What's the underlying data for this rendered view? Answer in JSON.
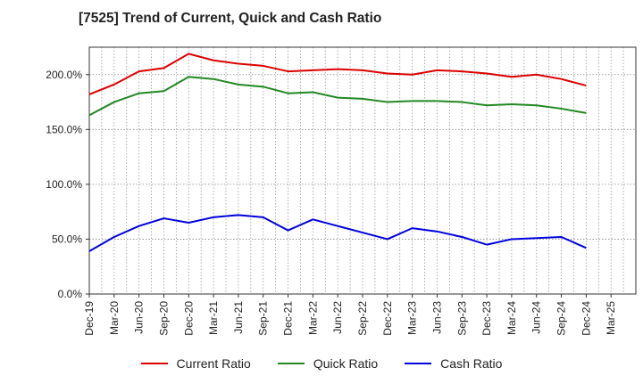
{
  "chart_data": {
    "type": "line",
    "title": "[7525]  Trend of Current, Quick and Cash Ratio",
    "categories": [
      "Dec-19",
      "Mar-20",
      "Jun-20",
      "Sep-20",
      "Dec-20",
      "Mar-21",
      "Jun-21",
      "Sep-21",
      "Dec-21",
      "Mar-22",
      "Jun-22",
      "Sep-22",
      "Dec-22",
      "Mar-23",
      "Jun-23",
      "Sep-23",
      "Dec-23",
      "Mar-24",
      "Jun-24",
      "Sep-24",
      "Dec-24",
      "Mar-25"
    ],
    "series": [
      {
        "name": "Current Ratio",
        "color": "#dd0000",
        "values": [
          182,
          191,
          203,
          206,
          219,
          213,
          210,
          208,
          203,
          204,
          205,
          204,
          201,
          200,
          204,
          203,
          201,
          198,
          200,
          196,
          190,
          null
        ]
      },
      {
        "name": "Quick Ratio",
        "color": "#228822",
        "values": [
          163,
          175,
          183,
          185,
          198,
          196,
          191,
          189,
          183,
          184,
          179,
          178,
          175,
          176,
          176,
          175,
          172,
          173,
          172,
          169,
          165,
          null
        ]
      },
      {
        "name": "Cash Ratio",
        "color": "#0000dd",
        "values": [
          39,
          52,
          62,
          69,
          65,
          70,
          72,
          70,
          58,
          68,
          62,
          56,
          50,
          60,
          57,
          52,
          45,
          50,
          51,
          52,
          42,
          null
        ]
      }
    ],
    "yticks": [
      "0.0%",
      "50.0%",
      "100.0%",
      "150.0%",
      "200.0%"
    ],
    "ylim": [
      0,
      225
    ],
    "xlabel": "",
    "ylabel": ""
  }
}
